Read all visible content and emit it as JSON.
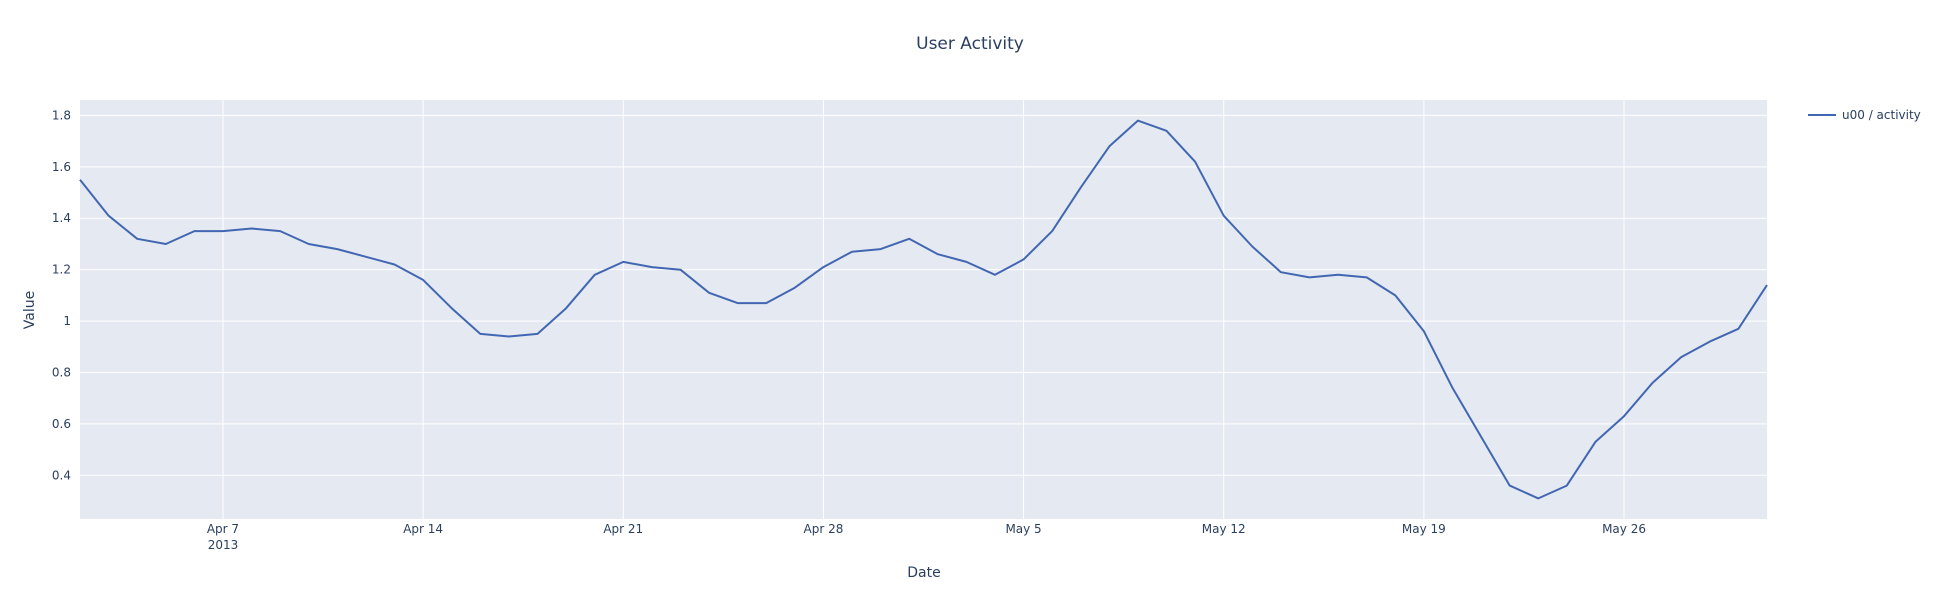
{
  "chart_data": {
    "type": "line",
    "title": "User Activity",
    "xlabel": "Date",
    "ylabel": "Value",
    "x_start": "2013-04-02",
    "x_end": "2013-05-31",
    "ylim": [
      0.23,
      1.86
    ],
    "grid": true,
    "legend_position": "top-right",
    "colors": {
      "plot_bg": "#e5e9f2",
      "grid": "#ffffff",
      "line": "#4267b2",
      "text": "#2a3f5f"
    },
    "x_ticks": [
      {
        "date": "2013-04-07",
        "label": "Apr 7",
        "sublabel": "2013"
      },
      {
        "date": "2013-04-14",
        "label": "Apr 14"
      },
      {
        "date": "2013-04-21",
        "label": "Apr 21"
      },
      {
        "date": "2013-04-28",
        "label": "Apr 28"
      },
      {
        "date": "2013-05-05",
        "label": "May 5"
      },
      {
        "date": "2013-05-12",
        "label": "May 12"
      },
      {
        "date": "2013-05-19",
        "label": "May 19"
      },
      {
        "date": "2013-05-26",
        "label": "May 26"
      }
    ],
    "y_ticks": [
      {
        "value": 0.4,
        "label": "0.4"
      },
      {
        "value": 0.6,
        "label": "0.6"
      },
      {
        "value": 0.8,
        "label": "0.8"
      },
      {
        "value": 1.0,
        "label": "1"
      },
      {
        "value": 1.2,
        "label": "1.2"
      },
      {
        "value": 1.4,
        "label": "1.4"
      },
      {
        "value": 1.6,
        "label": "1.6"
      },
      {
        "value": 1.8,
        "label": "1.8"
      }
    ],
    "series": [
      {
        "name": "u00 / activity",
        "x": [
          "2013-04-02",
          "2013-04-03",
          "2013-04-04",
          "2013-04-05",
          "2013-04-06",
          "2013-04-07",
          "2013-04-08",
          "2013-04-09",
          "2013-04-10",
          "2013-04-11",
          "2013-04-12",
          "2013-04-13",
          "2013-04-14",
          "2013-04-15",
          "2013-04-16",
          "2013-04-17",
          "2013-04-18",
          "2013-04-19",
          "2013-04-20",
          "2013-04-21",
          "2013-04-22",
          "2013-04-23",
          "2013-04-24",
          "2013-04-25",
          "2013-04-26",
          "2013-04-27",
          "2013-04-28",
          "2013-04-29",
          "2013-04-30",
          "2013-05-01",
          "2013-05-02",
          "2013-05-03",
          "2013-05-04",
          "2013-05-05",
          "2013-05-06",
          "2013-05-07",
          "2013-05-08",
          "2013-05-09",
          "2013-05-10",
          "2013-05-11",
          "2013-05-12",
          "2013-05-13",
          "2013-05-14",
          "2013-05-15",
          "2013-05-16",
          "2013-05-17",
          "2013-05-18",
          "2013-05-19",
          "2013-05-20",
          "2013-05-21",
          "2013-05-22",
          "2013-05-23",
          "2013-05-24",
          "2013-05-25",
          "2013-05-26",
          "2013-05-27",
          "2013-05-28",
          "2013-05-29",
          "2013-05-30",
          "2013-05-31"
        ],
        "values": [
          1.55,
          1.41,
          1.32,
          1.3,
          1.35,
          1.35,
          1.36,
          1.35,
          1.3,
          1.28,
          1.25,
          1.22,
          1.16,
          1.05,
          0.95,
          0.94,
          0.95,
          1.05,
          1.18,
          1.23,
          1.21,
          1.2,
          1.11,
          1.07,
          1.07,
          1.13,
          1.21,
          1.27,
          1.28,
          1.32,
          1.26,
          1.23,
          1.18,
          1.24,
          1.35,
          1.52,
          1.68,
          1.78,
          1.74,
          1.62,
          1.41,
          1.29,
          1.19,
          1.17,
          1.18,
          1.17,
          1.1,
          0.96,
          0.74,
          0.55,
          0.36,
          0.31,
          0.36,
          0.53,
          0.63,
          0.76,
          0.86,
          0.92,
          0.97,
          1.14
        ]
      }
    ]
  }
}
